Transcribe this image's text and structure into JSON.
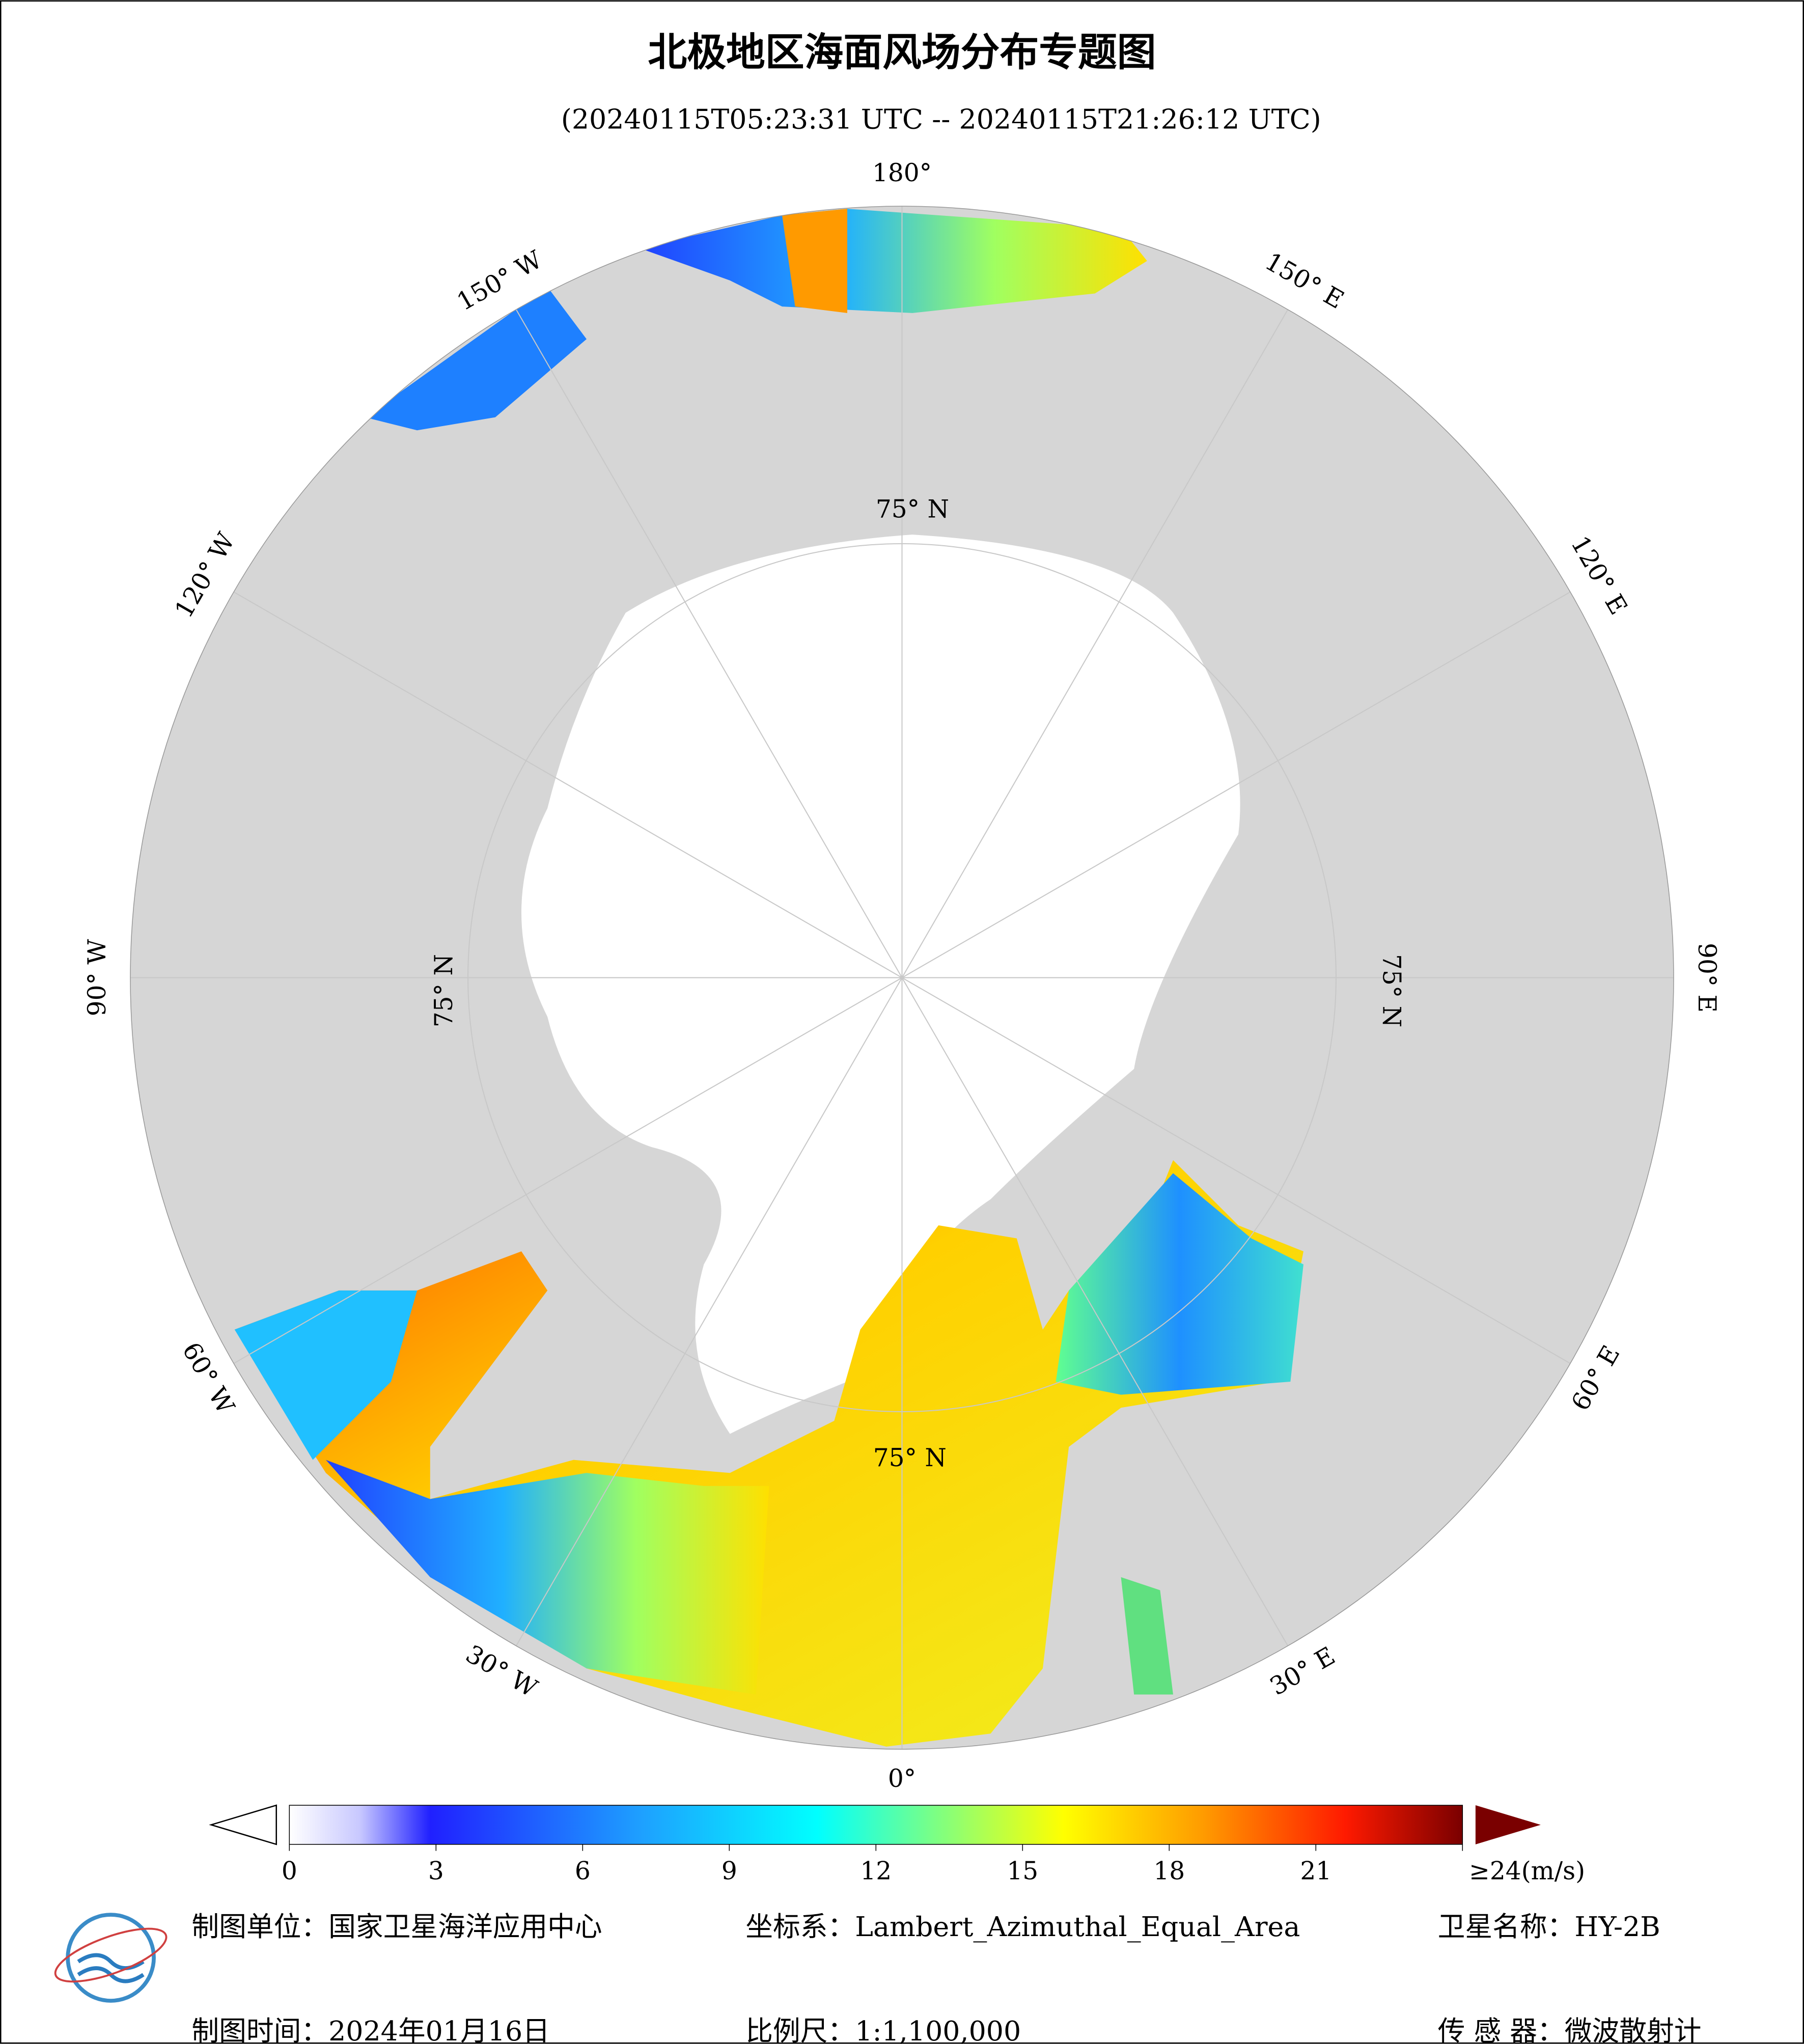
{
  "header": {
    "title": "北极地区海面风场分布专题图",
    "subtitle": "(20240115T05:23:31 UTC -- 20240115T21:26:12 UTC)"
  },
  "map": {
    "longitude_labels": [
      "0°",
      "30° E",
      "60° E",
      "90° E",
      "120° E",
      "150° E",
      "180°",
      "150° W",
      "120° W",
      "90° W",
      "60° W",
      "30° W"
    ],
    "latitude_labels": [
      "75° N",
      "75° N",
      "75° N",
      "75° N"
    ]
  },
  "colorbar": {
    "lim": [
      0,
      24
    ],
    "ticks": [
      0,
      3,
      6,
      9,
      12,
      15,
      18,
      21,
      {
        "value": 24,
        "label": "≥24(m/s)"
      }
    ]
  },
  "footer": {
    "producer": "制图单位：国家卫星海洋应用中心",
    "date": "制图时间：2024年01月16日",
    "projection": "坐标系：Lambert_Azimuthal_Equal_Area",
    "scale": "比例尺：1:1,100,000",
    "satellite": "卫星名称：HY-2B",
    "sensor": "传 感 器：微波散射计"
  }
}
